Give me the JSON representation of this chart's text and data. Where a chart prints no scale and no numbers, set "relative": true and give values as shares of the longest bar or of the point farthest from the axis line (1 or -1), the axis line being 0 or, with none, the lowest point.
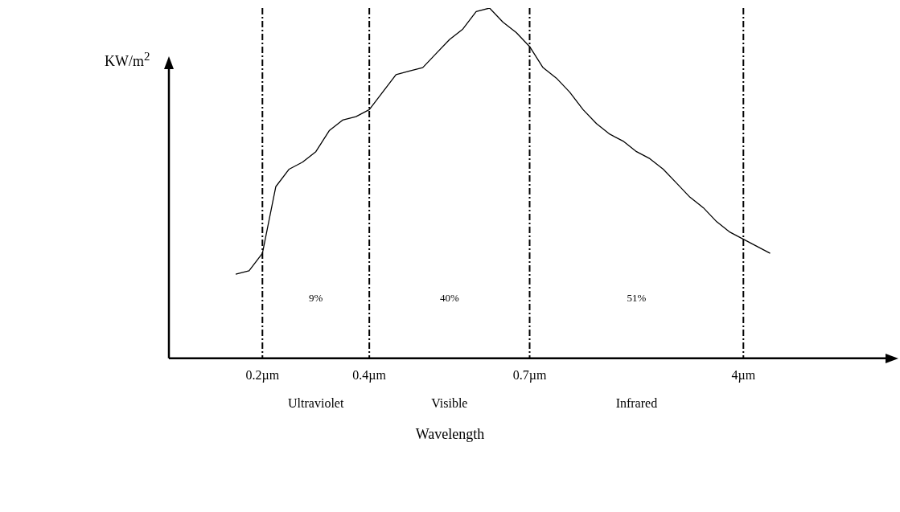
{
  "chart_data": {
    "type": "line",
    "relative": true,
    "xlabel": "Wavelength",
    "ylabel": "KW/m$^{2}$",
    "categories": [
      null,
      null,
      null,
      null,
      null,
      null,
      null,
      "0.2µm",
      null,
      null,
      null,
      null,
      null,
      null,
      null,
      "0.4µm",
      null,
      null,
      null,
      null,
      null,
      null,
      null,
      null,
      null,
      null,
      null,
      "0.7µm",
      null,
      null,
      null,
      null,
      null,
      null,
      null,
      null,
      null,
      null,
      null,
      null,
      null,
      null,
      null,
      "4µm",
      null,
      null,
      null,
      null,
      null,
      null,
      null,
      null,
      null,
      null,
      null
    ],
    "series": [
      {
        "color": "#000000",
        "values": [
          null,
          null,
          null,
          null,
          null,
          0.24,
          0.25,
          0.3,
          0.49,
          0.54,
          0.56,
          0.59,
          0.65,
          0.68,
          0.69,
          0.71,
          0.76,
          0.81,
          0.82,
          0.83,
          0.87,
          0.91,
          0.94,
          0.99,
          1.0,
          0.96,
          0.93,
          0.89,
          0.83,
          0.8,
          0.76,
          0.71,
          0.67,
          0.64,
          0.62,
          0.59,
          0.57,
          0.54,
          0.5,
          0.46,
          0.43,
          0.39,
          0.36,
          0.34,
          0.32,
          0.3,
          null,
          null,
          null,
          null,
          null,
          null,
          null,
          null,
          null
        ]
      }
    ],
    "ref_lines": [
      {
        "axis": "x",
        "value": "0.2µm",
        "line_style": "dashed"
      },
      {
        "axis": "x",
        "value": "0.4µm",
        "line_style": "dashed"
      },
      {
        "axis": "x",
        "value": "0.7µm",
        "line_style": "dashed"
      },
      {
        "axis": "x",
        "value": "4µm",
        "line_style": "dashed"
      }
    ],
    "annotations": [
      "9%",
      "40%",
      "51%",
      "Ultraviolet",
      "Visible",
      "Infrared"
    ],
    "grid": false,
    "legend": false,
    "marker": "none",
    "line_style": "solid"
  }
}
